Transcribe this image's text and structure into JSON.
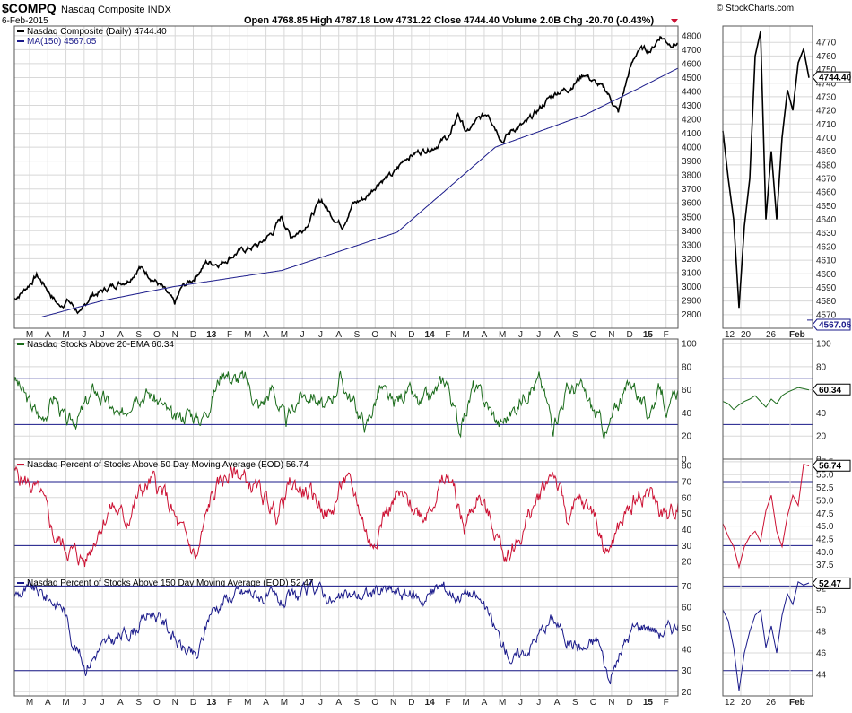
{
  "header": {
    "symbol": "$COMPQ",
    "name": "Nasdaq Composite INDX",
    "date": "6-Feb-2015",
    "brand": "© StockCharts.com",
    "ohlc": "Open 4768.85  High 4787.18  Low 4731.22  Close 4744.40  Volume 2.0B  Chg -20.70 (-0.43%)"
  },
  "colors": {
    "price": "#000000",
    "ma": "#1a1a8a",
    "ema20": "#1a6b1a",
    "pct50": "#cc1133",
    "pct150": "#1a1a8a"
  },
  "x_axis": {
    "main_months": [
      "M",
      "A",
      "M",
      "J",
      "J",
      "A",
      "S",
      "O",
      "N",
      "D",
      "13",
      "F",
      "M",
      "A",
      "M",
      "J",
      "J",
      "A",
      "S",
      "O",
      "N",
      "D",
      "14",
      "F",
      "M",
      "A",
      "M",
      "J",
      "J",
      "A",
      "S",
      "O",
      "N",
      "D",
      "15",
      "F"
    ],
    "zoom_labels": [
      "12",
      "20",
      "26",
      "Feb"
    ]
  },
  "chart_data": [
    {
      "id": "price",
      "type": "line",
      "title": "Nasdaq Composite (Daily) 4744.40",
      "series": [
        {
          "name": "Nasdaq Composite (Daily) 4744.40",
          "color": "#000000",
          "anchors": [
            [
              0,
              2915
            ],
            [
              10,
              2965
            ],
            [
              25,
              3080
            ],
            [
              35,
              3000
            ],
            [
              50,
              2860
            ],
            [
              60,
              2900
            ],
            [
              75,
              2800
            ],
            [
              85,
              2930
            ],
            [
              100,
              2970
            ],
            [
              115,
              3020
            ],
            [
              128,
              3050
            ],
            [
              140,
              3140
            ],
            [
              152,
              3080
            ],
            [
              165,
              3000
            ],
            [
              180,
              2870
            ],
            [
              188,
              2990
            ],
            [
              200,
              3050
            ],
            [
              215,
              3170
            ],
            [
              232,
              3170
            ],
            [
              250,
              3245
            ],
            [
              262,
              3270
            ],
            [
              275,
              3300
            ],
            [
              290,
              3390
            ],
            [
              300,
              3500
            ],
            [
              310,
              3360
            ],
            [
              325,
              3420
            ],
            [
              345,
              3620
            ],
            [
              355,
              3520
            ],
            [
              368,
              3440
            ],
            [
              380,
              3590
            ],
            [
              395,
              3640
            ],
            [
              410,
              3760
            ],
            [
              425,
              3800
            ],
            [
              440,
              3930
            ],
            [
              455,
              3970
            ],
            [
              470,
              4000
            ],
            [
              490,
              4090
            ],
            [
              498,
              4240
            ],
            [
              508,
              4100
            ],
            [
              518,
              4180
            ],
            [
              532,
              4250
            ],
            [
              548,
              4050
            ],
            [
              560,
              4130
            ],
            [
              575,
              4170
            ],
            [
              586,
              4250
            ],
            [
              600,
              4350
            ],
            [
              610,
              4400
            ],
            [
              622,
              4420
            ],
            [
              640,
              4530
            ],
            [
              652,
              4460
            ],
            [
              665,
              4400
            ],
            [
              678,
              4250
            ],
            [
              690,
              4540
            ],
            [
              700,
              4700
            ],
            [
              715,
              4700
            ],
            [
              725,
              4800
            ],
            [
              735,
              4750
            ],
            [
              745,
              4744
            ]
          ],
          "noise": 34,
          "seed": 7
        },
        {
          "name": "MA(150) 4567.05",
          "color": "#1a1a8a",
          "anchors": [
            [
              30,
              2780
            ],
            [
              100,
              2900
            ],
            [
              180,
              3000
            ],
            [
              300,
              3115
            ],
            [
              430,
              3390
            ],
            [
              540,
              4000
            ],
            [
              640,
              4230
            ],
            [
              700,
              4420
            ],
            [
              745,
              4567
            ]
          ],
          "noise": 0,
          "seed": 1
        }
      ],
      "ylim": [
        2700,
        4870
      ],
      "yticks": [
        2800,
        2900,
        3000,
        3100,
        3200,
        3300,
        3400,
        3500,
        3600,
        3700,
        3800,
        3900,
        4000,
        4100,
        4200,
        4300,
        4400,
        4500,
        4600,
        4700,
        4800
      ],
      "zoom": {
        "ylim": [
          4560,
          4782
        ],
        "yticks": [
          4570,
          4580,
          4590,
          4600,
          4610,
          4620,
          4630,
          4640,
          4650,
          4660,
          4670,
          4680,
          4690,
          4700,
          4710,
          4720,
          4730,
          4740,
          4750,
          4760,
          4770
        ],
        "values": [
          4705,
          4670,
          4640,
          4575,
          4635,
          4670,
          4760,
          4778,
          4640,
          4690,
          4640,
          4700,
          4735,
          4720,
          4755,
          4765,
          4744
        ]
      },
      "last_labels": [
        "4744.40",
        "4567.05"
      ]
    },
    {
      "id": "ema20",
      "type": "line",
      "title": "Nasdaq Stocks Above 20-EMA 60.34",
      "series": [
        {
          "name": "Nasdaq Stocks Above 20-EMA 60.34",
          "color": "#1a6b1a",
          "anchors": [
            [
              0,
              70
            ],
            [
              15,
              50
            ],
            [
              30,
              35
            ],
            [
              45,
              55
            ],
            [
              60,
              28
            ],
            [
              75,
              40
            ],
            [
              90,
              60
            ],
            [
              105,
              48
            ],
            [
              120,
              32
            ],
            [
              135,
              62
            ],
            [
              150,
              58
            ],
            [
              165,
              48
            ],
            [
              180,
              30
            ],
            [
              195,
              42
            ],
            [
              210,
              35
            ],
            [
              225,
              60
            ],
            [
              235,
              80
            ],
            [
              245,
              70
            ],
            [
              260,
              68
            ],
            [
              275,
              45
            ],
            [
              290,
              62
            ],
            [
              305,
              30
            ],
            [
              320,
              55
            ],
            [
              335,
              58
            ],
            [
              350,
              40
            ],
            [
              365,
              70
            ],
            [
              380,
              50
            ],
            [
              395,
              28
            ],
            [
              410,
              62
            ],
            [
              425,
              45
            ],
            [
              440,
              60
            ],
            [
              455,
              45
            ],
            [
              470,
              55
            ],
            [
              485,
              70
            ],
            [
              500,
              25
            ],
            [
              515,
              62
            ],
            [
              530,
              48
            ],
            [
              545,
              30
            ],
            [
              560,
              42
            ],
            [
              575,
              60
            ],
            [
              590,
              68
            ],
            [
              605,
              30
            ],
            [
              620,
              60
            ],
            [
              635,
              62
            ],
            [
              650,
              42
            ],
            [
              665,
              22
            ],
            [
              680,
              52
            ],
            [
              695,
              68
            ],
            [
              710,
              38
            ],
            [
              725,
              62
            ],
            [
              735,
              40
            ],
            [
              745,
              60
            ]
          ],
          "noise": 11,
          "seed": 3
        }
      ],
      "ylim": [
        0,
        104
      ],
      "yticks": [
        0,
        20,
        40,
        60,
        80,
        100
      ],
      "hlines": [
        30,
        70
      ],
      "zoom": {
        "ylim": [
          0,
          104
        ],
        "yticks": [
          0,
          20,
          40,
          60,
          80,
          100
        ],
        "values": [
          50,
          48,
          43,
          47,
          50,
          52,
          55,
          50,
          45,
          52,
          48,
          55,
          58,
          60,
          62,
          61,
          60
        ]
      },
      "last_labels": [
        "60.34"
      ]
    },
    {
      "id": "pct50",
      "type": "line",
      "title": "Nasdaq Percent of Stocks Above 50 Day Moving Average (EOD) 56.74",
      "series": [
        {
          "name": "Nasdaq Percent of Stocks Above 50 Day Moving Average (EOD) 56.74",
          "color": "#cc1133",
          "anchors": [
            [
              0,
              75
            ],
            [
              18,
              68
            ],
            [
              30,
              60
            ],
            [
              45,
              35
            ],
            [
              60,
              28
            ],
            [
              80,
              20
            ],
            [
              95,
              42
            ],
            [
              110,
              55
            ],
            [
              125,
              45
            ],
            [
              140,
              62
            ],
            [
              155,
              70
            ],
            [
              170,
              60
            ],
            [
              185,
              40
            ],
            [
              205,
              22
            ],
            [
              220,
              58
            ],
            [
              235,
              72
            ],
            [
              250,
              76
            ],
            [
              265,
              68
            ],
            [
              280,
              60
            ],
            [
              295,
              50
            ],
            [
              310,
              68
            ],
            [
              325,
              64
            ],
            [
              340,
              58
            ],
            [
              355,
              48
            ],
            [
              370,
              72
            ],
            [
              385,
              58
            ],
            [
              400,
              30
            ],
            [
              415,
              50
            ],
            [
              430,
              60
            ],
            [
              445,
              55
            ],
            [
              460,
              50
            ],
            [
              475,
              65
            ],
            [
              490,
              72
            ],
            [
              505,
              40
            ],
            [
              520,
              62
            ],
            [
              535,
              45
            ],
            [
              550,
              25
            ],
            [
              565,
              32
            ],
            [
              580,
              50
            ],
            [
              595,
              68
            ],
            [
              605,
              78
            ],
            [
              620,
              48
            ],
            [
              635,
              55
            ],
            [
              650,
              52
            ],
            [
              665,
              25
            ],
            [
              680,
              42
            ],
            [
              695,
              58
            ],
            [
              710,
              65
            ],
            [
              725,
              52
            ],
            [
              735,
              46
            ],
            [
              745,
              57
            ]
          ],
          "noise": 9,
          "seed": 5
        }
      ],
      "ylim": [
        10,
        84
      ],
      "yticks": [
        20,
        30,
        40,
        50,
        60,
        70,
        80
      ],
      "hlines": [
        30,
        70
      ],
      "zoom": {
        "ylim": [
          35,
          58
        ],
        "yticks": [
          37.5,
          40.0,
          42.5,
          45.0,
          47.5,
          50.0,
          52.5,
          55.0,
          57.5
        ],
        "values": [
          45.5,
          43,
          41,
          37,
          41,
          43,
          44,
          42,
          48,
          51,
          44,
          41,
          47,
          51,
          49,
          57,
          56.7
        ]
      },
      "last_labels": [
        "56.74"
      ]
    },
    {
      "id": "pct150",
      "type": "line",
      "title": "Nasdaq Percent of Stocks Above 150 Day Moving Average (EOD) 52.47",
      "series": [
        {
          "name": "Nasdaq Percent of Stocks Above 150 Day Moving Average (EOD) 52.47",
          "color": "#1a1a8a",
          "anchors": [
            [
              0,
              66
            ],
            [
              20,
              68
            ],
            [
              40,
              64
            ],
            [
              55,
              60
            ],
            [
              65,
              45
            ],
            [
              80,
              32
            ],
            [
              95,
              40
            ],
            [
              115,
              45
            ],
            [
              135,
              50
            ],
            [
              155,
              58
            ],
            [
              170,
              52
            ],
            [
              185,
              42
            ],
            [
              205,
              35
            ],
            [
              220,
              58
            ],
            [
              240,
              65
            ],
            [
              265,
              67
            ],
            [
              285,
              64
            ],
            [
              300,
              62
            ],
            [
              320,
              65
            ],
            [
              340,
              70
            ],
            [
              360,
              62
            ],
            [
              375,
              65
            ],
            [
              395,
              66
            ],
            [
              415,
              68
            ],
            [
              440,
              66
            ],
            [
              460,
              64
            ],
            [
              480,
              70
            ],
            [
              495,
              66
            ],
            [
              510,
              67
            ],
            [
              525,
              62
            ],
            [
              545,
              45
            ],
            [
              560,
              35
            ],
            [
              575,
              40
            ],
            [
              590,
              48
            ],
            [
              605,
              55
            ],
            [
              620,
              45
            ],
            [
              640,
              40
            ],
            [
              655,
              45
            ],
            [
              668,
              25
            ],
            [
              682,
              40
            ],
            [
              695,
              50
            ],
            [
              710,
              52
            ],
            [
              725,
              48
            ],
            [
              735,
              50
            ],
            [
              745,
              52
            ]
          ],
          "noise": 5,
          "seed": 9
        }
      ],
      "ylim": [
        18,
        74
      ],
      "yticks": [
        20,
        30,
        40,
        50,
        60,
        70
      ],
      "hlines": [
        30,
        70
      ],
      "zoom": {
        "ylim": [
          42,
          53
        ],
        "yticks": [
          44,
          46,
          48,
          50,
          52
        ],
        "values": [
          50,
          49,
          46.5,
          42.5,
          46,
          48,
          49.5,
          50,
          46.5,
          48.5,
          46,
          49.5,
          51.5,
          50.5,
          52.6,
          52.3,
          52.5
        ]
      },
      "last_labels": [
        "52.47"
      ]
    }
  ]
}
